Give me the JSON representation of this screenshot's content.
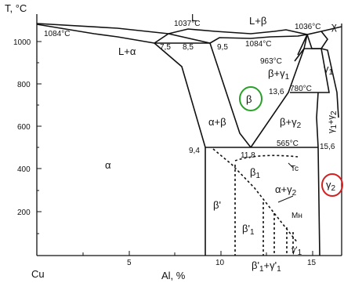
{
  "axes": {
    "y_title": "T, °C",
    "x_title": "Al, %",
    "x_element": "Cu",
    "y_ticks": [
      "1000",
      "800",
      "600",
      "400",
      "200"
    ],
    "x_ticks": [
      "5",
      "10",
      "15"
    ]
  },
  "temperatures": {
    "cu_melt": "1084°C",
    "t1037": "1037°C",
    "t1084": "1084°C",
    "t1036": "1036°C",
    "t963": "963°C",
    "t780": "780°C",
    "t565": "565°C"
  },
  "compositions": {
    "c7_5": "7,5",
    "c8_5": "8,5",
    "c9_5": "9,5",
    "c13_6": "13,6",
    "c9_4": "9,4",
    "c11_8": "11,8",
    "c15_6": "15,6"
  },
  "phases": {
    "L": "L",
    "L_beta": "L+β",
    "L_alpha": "L+α",
    "chi": "χ",
    "beta_gamma1": "β+γ",
    "beta_gamma1_sub": "1",
    "gamma1": "γ",
    "gamma1_sub": "1",
    "beta": "β",
    "alpha_beta": "α+β",
    "beta_gamma2": "β+γ",
    "beta_gamma2_sub": "2",
    "gamma1_gamma2": "γ",
    "gamma1_gamma2_sub1": "1",
    "gamma1_gamma2_mid": "+γ",
    "gamma1_gamma2_sub2": "2",
    "alpha": "α",
    "beta1": "β",
    "beta1_sub": "1",
    "tc": "Tc",
    "alpha_gamma2": "α+γ",
    "alpha_gamma2_sub": "2",
    "gamma2": "γ",
    "gamma2_sub": "2",
    "beta_prime": "β'",
    "beta1_prime": "β'",
    "beta1_prime_sub": "1",
    "mn": "Mн",
    "gamma1_prime": "γ'",
    "gamma1_prime_sub": "1",
    "bottom_mix_a": "β'",
    "bottom_mix_a_sub": "1",
    "bottom_mix_b": "+γ'",
    "bottom_mix_b_sub": "1"
  },
  "highlights": {
    "green_circle_color": "#2aa02a",
    "red_circle_color": "#d42020"
  }
}
